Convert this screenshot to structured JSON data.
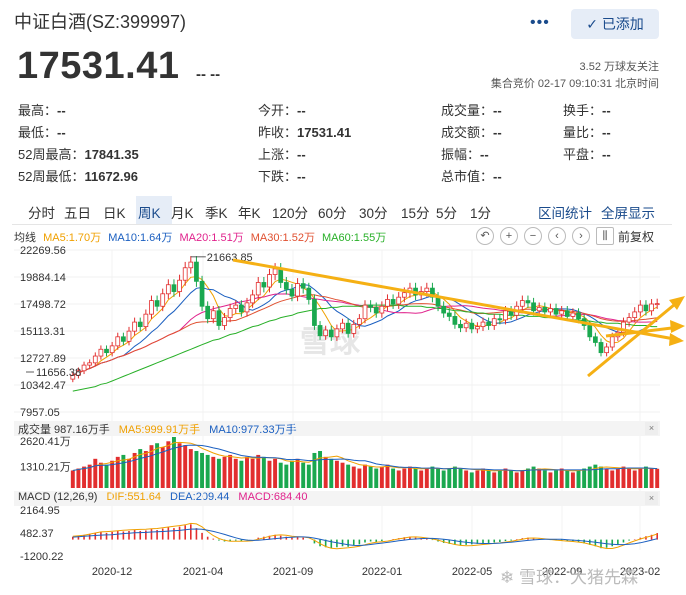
{
  "header": {
    "title": "中证白酒(SZ:399997)",
    "more_icon": "more-dots-icon",
    "added_label": "已添加",
    "price": "17531.41",
    "change": "-- --",
    "followers": "3.52 万球友关注",
    "bid_time": "集合竞价 02-17 09:10:31 北京时间"
  },
  "stats": [
    [
      {
        "label": "最高：",
        "value": "--"
      },
      {
        "label": "今开：",
        "value": "--"
      },
      {
        "label": "成交量：",
        "value": "--"
      },
      {
        "label": "换手：",
        "value": "--"
      }
    ],
    [
      {
        "label": "最低：",
        "value": "--"
      },
      {
        "label": "昨收：",
        "value": "17531.41"
      },
      {
        "label": "成交额：",
        "value": "--"
      },
      {
        "label": "量比：",
        "value": "--"
      }
    ],
    [
      {
        "label": "52周最高：",
        "value": "17841.35"
      },
      {
        "label": "上涨：",
        "value": "--"
      },
      {
        "label": "振幅：",
        "value": "--"
      },
      {
        "label": "平盘：",
        "value": "--"
      }
    ],
    [
      {
        "label": "52周最低：",
        "value": "11672.96"
      },
      {
        "label": "下跌：",
        "value": "--"
      },
      {
        "label": "总市值：",
        "value": "--"
      },
      {
        "label": "",
        "value": ""
      }
    ]
  ],
  "periods": [
    "分时",
    "五日",
    "日K",
    "周K",
    "月K",
    "季K",
    "年K",
    "120分",
    "60分",
    "30分",
    "15分",
    "5分",
    "1分"
  ],
  "active_period": "周K",
  "period_links": [
    "区间统计",
    "全屏显示"
  ],
  "legend": {
    "line_type": "均线",
    "ma5": "MA5:1.70万",
    "ma10": "MA10:1.64万",
    "ma20": "MA20:1.51万",
    "ma30": "MA30:1.52万",
    "ma60": "MA60:1.55万",
    "adjust": "前复权"
  },
  "volume_legend": {
    "label": "成交量 987.16万手",
    "ma5": "MA5:999.91万手",
    "ma10": "MA10:977.33万手"
  },
  "macd_legend": {
    "label": "MACD (12,26,9)",
    "dif": "DIF:551.64",
    "dea": "DEA:209.44",
    "macd": "MACD:684.40"
  },
  "colors": {
    "up": "#e22e2e",
    "down": "#1aa84f",
    "ma5": "#f0a000",
    "ma10": "#1b5fc0",
    "ma20": "#e0228c",
    "ma30": "#e05030",
    "ma60": "#28b028",
    "trend": "#f5b014",
    "accent": "#1a4b8c"
  },
  "chart_data": {
    "type": "candlestick",
    "price_axis_labels": [
      "22269.56",
      "19884.14",
      "17498.72",
      "15113.31",
      "12727.89",
      "10342.47",
      "7957.05"
    ],
    "annotations": {
      "high_marker": "21663.85",
      "low_marker": "11656.38"
    },
    "volume_axis_labels": [
      "2620.41万",
      "1310.21万"
    ],
    "macd_axis_labels": [
      "2164.95",
      "482.37",
      "-1200.22"
    ],
    "x_labels": [
      "2020-12",
      "2021-04",
      "2021-09",
      "2022-01",
      "2022-05",
      "2022-09",
      "2023-02"
    ],
    "closes": [
      11200,
      11600,
      12100,
      12300,
      12900,
      13500,
      13200,
      13800,
      14600,
      14200,
      15100,
      15900,
      15500,
      16600,
      17800,
      17300,
      18400,
      19200,
      18600,
      19600,
      20700,
      21200,
      19500,
      17300,
      16200,
      16900,
      15600,
      16300,
      17100,
      17400,
      16800,
      17600,
      18300,
      19400,
      19000,
      20100,
      20600,
      19400,
      18800,
      18200,
      19300,
      18900,
      17900,
      15600,
      14700,
      15200,
      14600,
      15300,
      15800,
      14900,
      15700,
      16200,
      17400,
      17200,
      16700,
      17300,
      17900,
      17500,
      18100,
      18500,
      18900,
      18300,
      18600,
      18900,
      18100,
      17300,
      16700,
      16400,
      15700,
      15400,
      15800,
      15300,
      15500,
      15900,
      15600,
      16200,
      16100,
      16900,
      16500,
      17300,
      17800,
      17600,
      16900,
      17200,
      16800,
      17100,
      16600,
      16900,
      16400,
      16700,
      16200,
      15600,
      14600,
      14100,
      13200,
      13700,
      14600,
      15000,
      15900,
      16300,
      16800,
      17400,
      16900,
      17500,
      17531
    ],
    "ma60": [
      9800,
      9900,
      10000,
      10100,
      10200,
      10400,
      10500,
      10700,
      10900,
      11100,
      11300,
      11500,
      11700,
      11900,
      12100,
      12300,
      12500,
      12700,
      12900,
      13100,
      13300,
      13500,
      13700,
      13900,
      14100,
      14300,
      14400,
      14600,
      14800,
      14900,
      15100,
      15300,
      15500,
      15600,
      15800,
      16000,
      16100,
      16300,
      16400,
      16500,
      16700,
      16800,
      16900,
      17000,
      17100,
      17100,
      17200,
      17200,
      17300,
      17300,
      17300,
      17300,
      17400,
      17400,
      17400,
      17400,
      17400,
      17400,
      17400,
      17300,
      17300,
      17300,
      17300,
      17200,
      17200,
      17100,
      17100,
      17000,
      16900,
      16900,
      16800,
      16800,
      16700,
      16700,
      16600,
      16600,
      16600,
      16500,
      16500,
      16500,
      16500,
      16400,
      16400,
      16400,
      16300,
      16300,
      16300,
      16200,
      16200,
      16100,
      16100,
      16000,
      16000,
      15900,
      15900,
      15800,
      15800,
      15800,
      15700,
      15700,
      15600,
      15600,
      15600,
      15500,
      15500
    ],
    "volumes": [
      900,
      1000,
      1100,
      1200,
      1500,
      1300,
      1200,
      1400,
      1600,
      1700,
      1500,
      1800,
      2000,
      1900,
      2200,
      2300,
      2100,
      2400,
      2620,
      2300,
      2200,
      2000,
      1900,
      1800,
      1700,
      1600,
      1500,
      1600,
      1700,
      1500,
      1400,
      1600,
      1500,
      1700,
      1600,
      1400,
      1500,
      1300,
      1200,
      1400,
      1500,
      1300,
      1200,
      1800,
      1900,
      1600,
      1500,
      1400,
      1300,
      1200,
      1100,
      1000,
      1200,
      1100,
      1000,
      1100,
      1200,
      1000,
      900,
      1000,
      1100,
      1000,
      900,
      1000,
      1100,
      1000,
      900,
      1000,
      1100,
      1000,
      900,
      800,
      900,
      1000,
      900,
      800,
      900,
      1000,
      900,
      800,
      900,
      1000,
      1100,
      1000,
      900,
      800,
      900,
      1000,
      900,
      800,
      900,
      1000,
      1100,
      1200,
      1100,
      1000,
      900,
      1000,
      1100,
      1000,
      900,
      1000,
      1100,
      1000,
      987
    ],
    "macd": [
      300,
      400,
      500,
      600,
      700,
      800,
      700,
      800,
      900,
      850,
      900,
      1000,
      900,
      950,
      1100,
      1000,
      1150,
      1300,
      1200,
      1350,
      1500,
      1600,
      1200,
      700,
      300,
      100,
      -100,
      -200,
      -150,
      -100,
      -200,
      -100,
      0,
      200,
      300,
      400,
      500,
      400,
      300,
      200,
      300,
      200,
      0,
      -400,
      -700,
      -800,
      -900,
      -800,
      -700,
      -750,
      -600,
      -500,
      -300,
      -200,
      -250,
      -150,
      0,
      50,
      150,
      250,
      300,
      200,
      150,
      100,
      -50,
      -200,
      -350,
      -450,
      -550,
      -600,
      -550,
      -500,
      -450,
      -400,
      -350,
      -300,
      -250,
      -150,
      -100,
      50,
      150,
      200,
      100,
      80,
      0,
      -50,
      -100,
      -120,
      -180,
      -220,
      -300,
      -400,
      -550,
      -700,
      -900,
      -850,
      -700,
      -500,
      -300,
      -100,
      50,
      200,
      350,
      500,
      684
    ]
  },
  "watermark": "雪球",
  "corner_watermark": "雪球：大猪先森"
}
